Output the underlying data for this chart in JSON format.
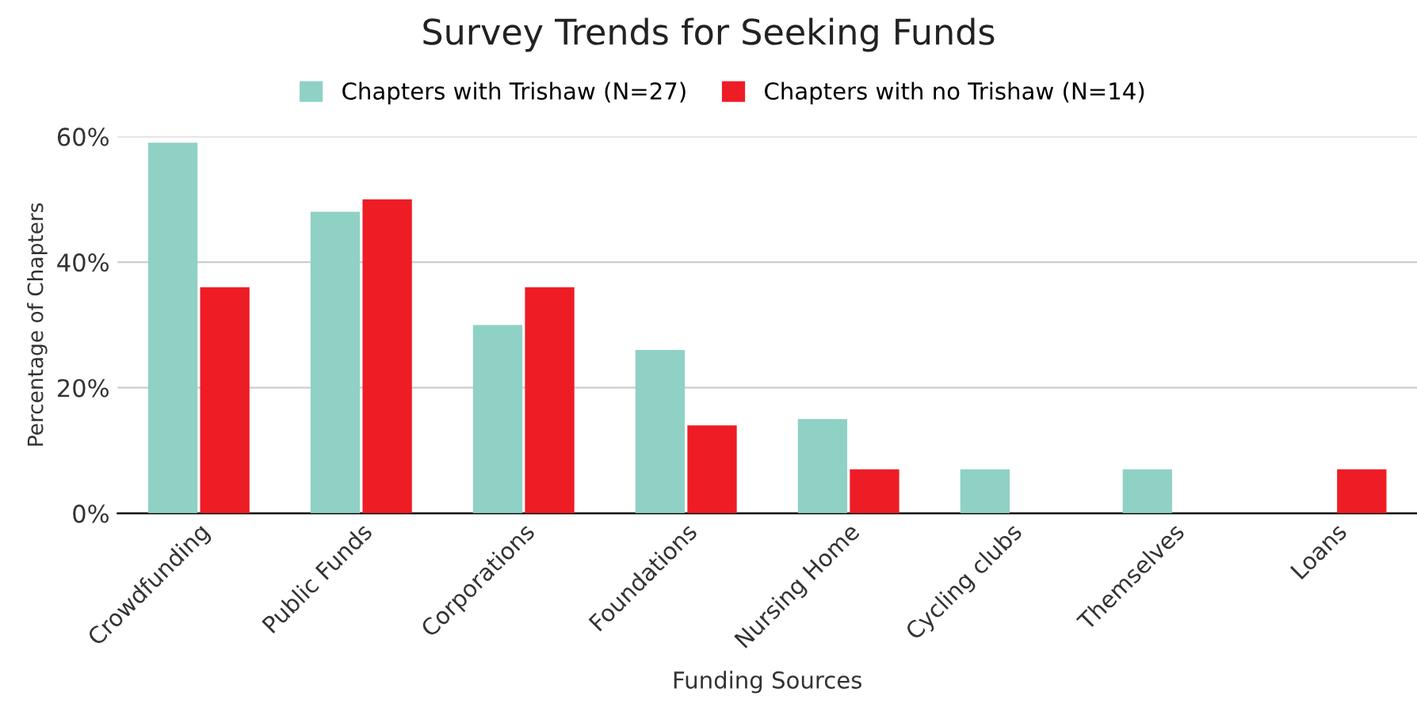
{
  "chart_data": {
    "type": "bar",
    "title": "Survey Trends for Seeking Funds",
    "xlabel": "Funding Sources",
    "ylabel": "Percentage of Chapters",
    "categories": [
      "Crowdfunding",
      "Public Funds",
      "Corporations",
      "Foundations",
      "Nursing Home",
      "Cycling clubs",
      "Themselves",
      "Loans"
    ],
    "series": [
      {
        "name": "Chapters with Trishaw (N=27)",
        "color": "#8fd1c5",
        "values": [
          59,
          48,
          30,
          26,
          15,
          7,
          7,
          0
        ]
      },
      {
        "name": "Chapters with no Trishaw (N=14)",
        "color": "#ee1c25",
        "values": [
          36,
          50,
          36,
          14,
          7,
          0,
          0,
          7
        ]
      }
    ],
    "ylim": [
      0,
      60
    ],
    "yticks": [
      {
        "value": 0,
        "label": "0%"
      },
      {
        "value": 20,
        "label": "20%"
      },
      {
        "value": 40,
        "label": "40%"
      },
      {
        "value": 60,
        "label": "60%"
      }
    ],
    "grid": "y",
    "legend": "top"
  }
}
